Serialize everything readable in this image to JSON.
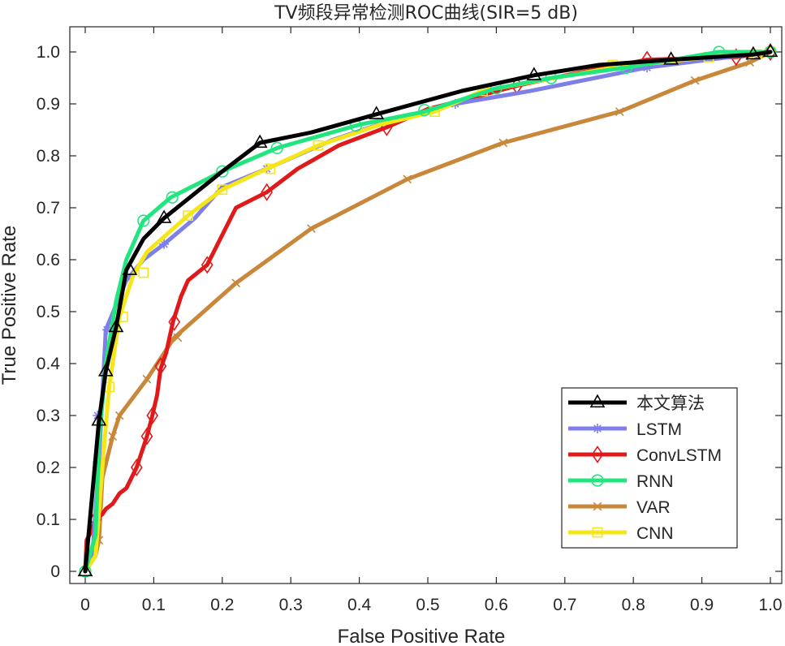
{
  "chart_data": {
    "type": "line",
    "title": "TV频段异常检测ROC曲线(SIR=5 dB)",
    "xlabel": "False Positive Rate",
    "ylabel": "True Positive Rate",
    "xlim": [
      0,
      1
    ],
    "ylim": [
      0,
      1.05
    ],
    "xticks": [
      0,
      0.1,
      0.2,
      0.3,
      0.4,
      0.5,
      0.6,
      0.7,
      0.8,
      0.9,
      1
    ],
    "xtick_labels": [
      "0",
      "0.1",
      "0.2",
      "0.3",
      "0.4",
      "0.5",
      "0.6",
      "0.7",
      "0.8",
      "0.9",
      "1.0"
    ],
    "yticks": [
      0,
      0.1,
      0.2,
      0.3,
      0.4,
      0.5,
      0.6,
      0.7,
      0.8,
      0.9,
      1
    ],
    "ytick_labels": [
      "0",
      "0.1",
      "0.2",
      "0.3",
      "0.4",
      "0.5",
      "0.6",
      "0.7",
      "0.8",
      "0.9",
      "1.0"
    ],
    "grid": false,
    "legend_position": "bottom-right",
    "series": [
      {
        "name": "本文算法",
        "color": "#000000",
        "marker": "triangle",
        "points": [
          [
            0,
            0
          ],
          [
            0.02,
            0.29
          ],
          [
            0.03,
            0.385
          ],
          [
            0.045,
            0.47
          ],
          [
            0.06,
            0.58
          ],
          [
            0.085,
            0.64
          ],
          [
            0.115,
            0.68
          ],
          [
            0.2,
            0.77
          ],
          [
            0.255,
            0.825
          ],
          [
            0.33,
            0.845
          ],
          [
            0.425,
            0.88
          ],
          [
            0.55,
            0.925
          ],
          [
            0.655,
            0.955
          ],
          [
            0.75,
            0.975
          ],
          [
            0.855,
            0.985
          ],
          [
            0.975,
            0.995
          ],
          [
            1.0,
            1.0
          ]
        ],
        "marker_points": [
          [
            0,
            0
          ],
          [
            0.02,
            0.29
          ],
          [
            0.03,
            0.385
          ],
          [
            0.045,
            0.47
          ],
          [
            0.065,
            0.58
          ],
          [
            0.115,
            0.68
          ],
          [
            0.255,
            0.825
          ],
          [
            0.425,
            0.88
          ],
          [
            0.655,
            0.955
          ],
          [
            0.855,
            0.985
          ],
          [
            0.975,
            0.995
          ],
          [
            1.0,
            1.0
          ]
        ]
      },
      {
        "name": "LSTM",
        "color": "#7f7fe8",
        "marker": "asterisk",
        "points": [
          [
            0,
            0
          ],
          [
            0.01,
            0.02
          ],
          [
            0.02,
            0.21
          ],
          [
            0.03,
            0.465
          ],
          [
            0.06,
            0.56
          ],
          [
            0.085,
            0.6
          ],
          [
            0.115,
            0.63
          ],
          [
            0.16,
            0.68
          ],
          [
            0.2,
            0.74
          ],
          [
            0.265,
            0.775
          ],
          [
            0.36,
            0.83
          ],
          [
            0.45,
            0.87
          ],
          [
            0.54,
            0.9
          ],
          [
            0.65,
            0.925
          ],
          [
            0.82,
            0.97
          ],
          [
            1.0,
            1.0
          ]
        ],
        "marker_points": [
          [
            0.018,
            0.21
          ],
          [
            0.018,
            0.3
          ],
          [
            0.032,
            0.465
          ],
          [
            0.115,
            0.63
          ],
          [
            0.265,
            0.775
          ],
          [
            0.54,
            0.9
          ],
          [
            0.82,
            0.97
          ]
        ]
      },
      {
        "name": "ConvLSTM",
        "color": "#e01a1a",
        "marker": "diamond",
        "points": [
          [
            0,
            0
          ],
          [
            0.002,
            0.06
          ],
          [
            0.01,
            0.08
          ],
          [
            0.015,
            0.1
          ],
          [
            0.025,
            0.11
          ],
          [
            0.03,
            0.12
          ],
          [
            0.04,
            0.13
          ],
          [
            0.05,
            0.15
          ],
          [
            0.06,
            0.16
          ],
          [
            0.075,
            0.2
          ],
          [
            0.09,
            0.26
          ],
          [
            0.098,
            0.3
          ],
          [
            0.105,
            0.34
          ],
          [
            0.11,
            0.39
          ],
          [
            0.118,
            0.42
          ],
          [
            0.128,
            0.48
          ],
          [
            0.14,
            0.53
          ],
          [
            0.15,
            0.56
          ],
          [
            0.178,
            0.59
          ],
          [
            0.22,
            0.7
          ],
          [
            0.265,
            0.73
          ],
          [
            0.31,
            0.775
          ],
          [
            0.37,
            0.82
          ],
          [
            0.44,
            0.855
          ],
          [
            0.5,
            0.89
          ],
          [
            0.56,
            0.91
          ],
          [
            0.63,
            0.935
          ],
          [
            0.72,
            0.96
          ],
          [
            0.82,
            0.985
          ],
          [
            0.95,
            0.99
          ],
          [
            1.0,
            1.0
          ]
        ],
        "marker_points": [
          [
            0.015,
            0.1
          ],
          [
            0.075,
            0.2
          ],
          [
            0.09,
            0.26
          ],
          [
            0.098,
            0.3
          ],
          [
            0.11,
            0.395
          ],
          [
            0.13,
            0.48
          ],
          [
            0.178,
            0.59
          ],
          [
            0.265,
            0.73
          ],
          [
            0.44,
            0.855
          ],
          [
            0.63,
            0.935
          ],
          [
            0.82,
            0.985
          ],
          [
            0.95,
            0.99
          ],
          [
            1.0,
            1.0
          ]
        ]
      },
      {
        "name": "RNN",
        "color": "#21e67f",
        "marker": "circle",
        "points": [
          [
            0,
            0
          ],
          [
            0.015,
            0.07
          ],
          [
            0.02,
            0.25
          ],
          [
            0.03,
            0.4
          ],
          [
            0.045,
            0.52
          ],
          [
            0.06,
            0.6
          ],
          [
            0.085,
            0.675
          ],
          [
            0.125,
            0.72
          ],
          [
            0.2,
            0.77
          ],
          [
            0.28,
            0.815
          ],
          [
            0.4,
            0.86
          ],
          [
            0.495,
            0.885
          ],
          [
            0.6,
            0.93
          ],
          [
            0.68,
            0.95
          ],
          [
            0.79,
            0.97
          ],
          [
            0.925,
            1.0
          ],
          [
            1.0,
            1.0
          ]
        ],
        "marker_points": [
          [
            0,
            0
          ],
          [
            0.085,
            0.675
          ],
          [
            0.127,
            0.72
          ],
          [
            0.2,
            0.77
          ],
          [
            0.28,
            0.815
          ],
          [
            0.395,
            0.858
          ],
          [
            0.495,
            0.888
          ],
          [
            0.6,
            0.93
          ],
          [
            0.68,
            0.95
          ],
          [
            0.79,
            0.97
          ],
          [
            0.925,
            1.0
          ],
          [
            1.0,
            1.0
          ]
        ]
      },
      {
        "name": "VAR",
        "color": "#c8873a",
        "marker": "x",
        "points": [
          [
            0,
            0
          ],
          [
            0.015,
            0.03
          ],
          [
            0.02,
            0.06
          ],
          [
            0.025,
            0.18
          ],
          [
            0.04,
            0.26
          ],
          [
            0.05,
            0.3
          ],
          [
            0.09,
            0.37
          ],
          [
            0.13,
            0.45
          ],
          [
            0.22,
            0.555
          ],
          [
            0.33,
            0.66
          ],
          [
            0.47,
            0.755
          ],
          [
            0.61,
            0.825
          ],
          [
            0.78,
            0.885
          ],
          [
            0.89,
            0.945
          ],
          [
            0.97,
            0.98
          ],
          [
            1.0,
            1.0
          ]
        ],
        "marker_points": [
          [
            0.02,
            0.06
          ],
          [
            0.04,
            0.26
          ],
          [
            0.05,
            0.3
          ],
          [
            0.09,
            0.37
          ],
          [
            0.135,
            0.45
          ],
          [
            0.22,
            0.555
          ],
          [
            0.33,
            0.66
          ],
          [
            0.47,
            0.755
          ],
          [
            0.61,
            0.825
          ],
          [
            0.78,
            0.885
          ],
          [
            0.89,
            0.945
          ],
          [
            0.97,
            0.98
          ]
        ]
      },
      {
        "name": "CNN",
        "color": "#f5e61a",
        "marker": "square",
        "points": [
          [
            0,
            0
          ],
          [
            0.015,
            0.03
          ],
          [
            0.025,
            0.2
          ],
          [
            0.035,
            0.355
          ],
          [
            0.05,
            0.49
          ],
          [
            0.07,
            0.57
          ],
          [
            0.09,
            0.615
          ],
          [
            0.15,
            0.685
          ],
          [
            0.2,
            0.735
          ],
          [
            0.265,
            0.775
          ],
          [
            0.34,
            0.82
          ],
          [
            0.43,
            0.86
          ],
          [
            0.51,
            0.885
          ],
          [
            0.58,
            0.925
          ],
          [
            0.77,
            0.97
          ],
          [
            0.91,
            0.99
          ],
          [
            1.0,
            1.0
          ]
        ],
        "marker_points": [
          [
            0.035,
            0.355
          ],
          [
            0.055,
            0.49
          ],
          [
            0.085,
            0.575
          ],
          [
            0.15,
            0.685
          ],
          [
            0.2,
            0.735
          ],
          [
            0.27,
            0.775
          ],
          [
            0.34,
            0.82
          ],
          [
            0.51,
            0.885
          ],
          [
            0.58,
            0.925
          ],
          [
            0.77,
            0.975
          ],
          [
            0.91,
            0.99
          ],
          [
            0.98,
            0.995
          ],
          [
            1.0,
            1.0
          ]
        ]
      }
    ]
  }
}
